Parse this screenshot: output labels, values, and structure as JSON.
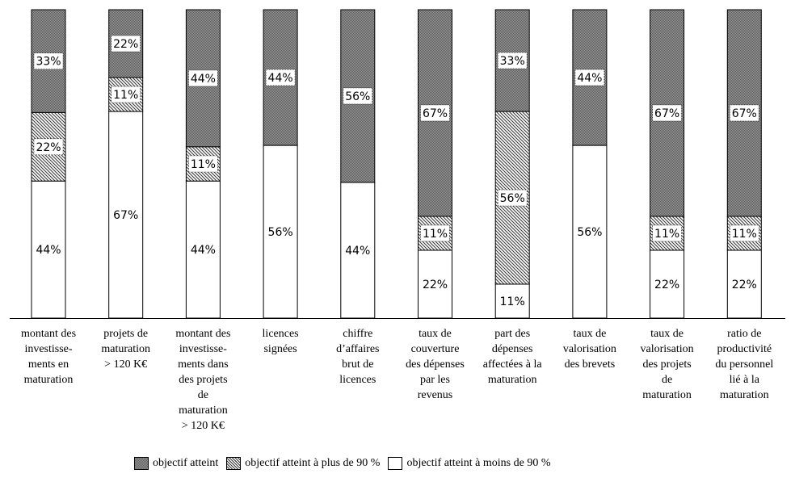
{
  "chart_data": {
    "type": "bar",
    "stacked": true,
    "percent": true,
    "title": "",
    "xlabel": "",
    "ylabel": "",
    "ylim": [
      0,
      100
    ],
    "grid": false,
    "legend_position": "bottom",
    "categories": [
      [
        "montant des",
        "investisse-",
        "ments en",
        "maturation"
      ],
      [
        "projets de",
        "maturation",
        "> 120 K€"
      ],
      [
        "montant des",
        "investisse-",
        "ments dans",
        "des projets",
        "de",
        "maturation",
        "> 120 K€"
      ],
      [
        "licences",
        "signées"
      ],
      [
        "chiffre",
        "d’affaires",
        "brut de",
        "licences"
      ],
      [
        "taux de",
        "couverture",
        "des dépenses",
        "par les",
        "revenus"
      ],
      [
        "part des",
        "dépenses",
        "affectées à la",
        "maturation"
      ],
      [
        "taux de",
        "valorisation",
        "des brevets"
      ],
      [
        "taux de",
        "valorisation",
        "des projets",
        "de",
        "maturation"
      ],
      [
        "ratio de",
        "productivité",
        "du personnel",
        "lié à la",
        "maturation"
      ]
    ],
    "series": [
      {
        "name": "objectif atteint à moins de 90 %",
        "key": "white",
        "color": "#ffffff",
        "values": [
          44,
          67,
          44,
          56,
          44,
          22,
          11,
          56,
          22,
          22
        ]
      },
      {
        "name": "objectif atteint à plus de 90 %",
        "key": "hatch",
        "color": "#ffffff",
        "values": [
          22,
          11,
          11,
          0,
          0,
          11,
          56,
          0,
          11,
          11
        ]
      },
      {
        "name": "objectif atteint",
        "key": "gray",
        "color": "#808080",
        "values": [
          33,
          22,
          44,
          44,
          56,
          67,
          33,
          44,
          67,
          67
        ]
      }
    ],
    "legend_order": [
      2,
      1,
      0
    ],
    "value_suffix": "%"
  }
}
